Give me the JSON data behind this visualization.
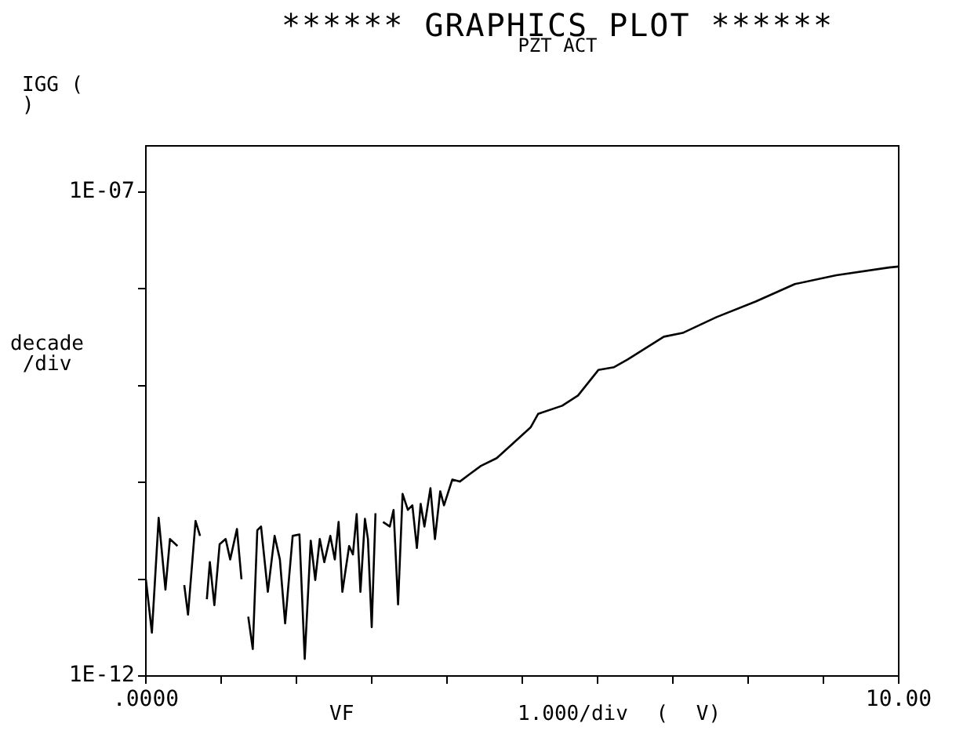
{
  "chart_data": {
    "type": "line",
    "title": "****** GRAPHICS PLOT ******",
    "subtitle": "PZT ACT",
    "ylabel": "IGG ( )",
    "xlabel": "VF",
    "annotations": [
      "decade /div",
      "1.000/div ( V)"
    ],
    "log": true,
    "grid": false,
    "color": "#000000",
    "xlim": [
      0,
      10
    ],
    "xticks": [
      {
        "value": 0,
        "label": ".0000"
      },
      {
        "value": 1,
        "label": null
      },
      {
        "value": 2,
        "label": null
      },
      {
        "value": 3,
        "label": null
      },
      {
        "value": 4,
        "label": null
      },
      {
        "value": 5,
        "label": null
      },
      {
        "value": 6,
        "label": null
      },
      {
        "value": 7,
        "label": null
      },
      {
        "value": 8,
        "label": null
      },
      {
        "value": 9,
        "label": null
      },
      {
        "value": 10,
        "label": "10.00"
      }
    ],
    "ylim": [
      1e-12,
      3e-07
    ],
    "yticks": [
      {
        "value": 1e-12,
        "label": "1E-12"
      },
      {
        "value": 1e-11,
        "label": null
      },
      {
        "value": 1e-10,
        "label": null
      },
      {
        "value": 1e-09,
        "label": null
      },
      {
        "value": 1e-08,
        "label": null
      },
      {
        "value": 1e-07,
        "label": "1E-07"
      }
    ],
    "x": [
      0,
      0.08,
      0.17,
      0.26,
      0.32,
      0.42,
      0.46,
      0.51,
      0.56,
      0.66,
      0.72,
      0.76,
      0.81,
      0.85,
      0.91,
      0.98,
      1.06,
      1.12,
      1.21,
      1.27,
      1.31,
      1.36,
      1.42,
      1.48,
      1.53,
      1.62,
      1.71,
      1.78,
      1.85,
      1.95,
      2.04,
      2.11,
      2.19,
      2.25,
      2.31,
      2.37,
      2.45,
      2.51,
      2.56,
      2.61,
      2.7,
      2.75,
      2.8,
      2.85,
      2.91,
      2.95,
      3,
      3.05,
      3.1,
      3.15,
      3.24,
      3.29,
      3.35,
      3.41,
      3.48,
      3.54,
      3.6,
      3.65,
      3.7,
      3.78,
      3.84,
      3.91,
      3.96,
      4.07,
      4.17,
      4.31,
      4.45,
      4.66,
      4.87,
      5.11,
      5.21,
      5.53,
      5.74,
      6.01,
      6.22,
      6.4,
      6.88,
      7.13,
      7.58,
      8.1,
      8.62,
      9.17,
      9.87,
      10
    ],
    "values": [
      1e-11,
      2.8e-12,
      4.3e-11,
      7.8e-12,
      2.6e-11,
      2.2e-11,
      null,
      8.7e-12,
      4.3e-12,
      4e-11,
      2.8e-11,
      null,
      6.2e-12,
      1.5e-11,
      5.4e-12,
      2.3e-11,
      2.6e-11,
      1.6e-11,
      3.3e-11,
      1e-11,
      null,
      4.1e-12,
      1.9e-12,
      3.2e-11,
      3.5e-11,
      7.4e-12,
      2.8e-11,
      1.6e-11,
      3.5e-12,
      2.8e-11,
      2.9e-11,
      1.5e-12,
      2.5e-11,
      9.8e-12,
      2.6e-11,
      1.5e-11,
      2.8e-11,
      1.6e-11,
      3.9e-11,
      7.4e-12,
      2.2e-11,
      1.8e-11,
      4.7e-11,
      7.4e-12,
      4.2e-11,
      2.6e-11,
      3.2e-12,
      4.8e-11,
      null,
      3.9e-11,
      3.5e-11,
      5.2e-11,
      5.5e-12,
      7.6e-11,
      5.2e-11,
      5.8e-11,
      2.1e-11,
      6e-11,
      3.5e-11,
      8.7e-11,
      2.6e-11,
      8.1e-11,
      5.8e-11,
      1.07e-10,
      1.02e-10,
      1.23e-10,
      1.48e-10,
      1.78e-10,
      2.5e-10,
      3.7e-10,
      5.1e-10,
      6.2e-10,
      7.9e-10,
      1.45e-09,
      1.55e-09,
      1.86e-09,
      3.2e-09,
      3.5e-09,
      5.1e-09,
      7.4e-09,
      1.12e-08,
      1.38e-08,
      1.66e-08,
      1.7e-08
    ]
  }
}
